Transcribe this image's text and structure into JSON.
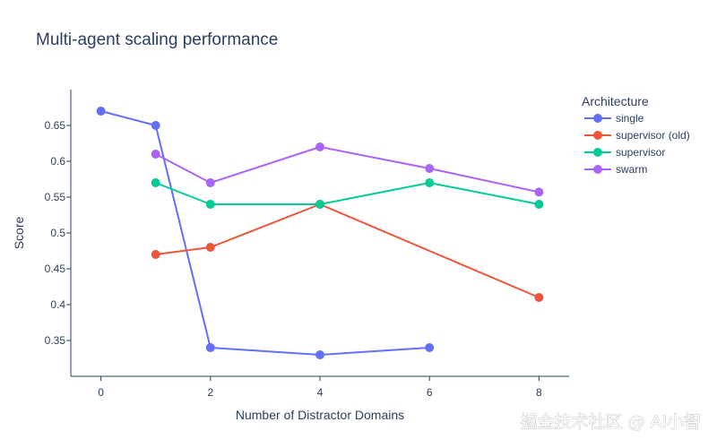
{
  "watermark": "掘金技术社区 @ AI小智",
  "chart_data": {
    "type": "line",
    "title": "Multi-agent scaling performance",
    "xlabel": "Number of Distractor Domains",
    "ylabel": "Score",
    "xlim": [
      -0.55,
      8.55
    ],
    "ylim": [
      0.3,
      0.7
    ],
    "xticks": [
      0,
      2,
      4,
      6,
      8
    ],
    "yticks": [
      0.35,
      0.4,
      0.45,
      0.5,
      0.55,
      0.6,
      0.65
    ],
    "ytick_labels": [
      "0.35",
      "0.4",
      "0.45",
      "0.5",
      "0.55",
      "0.6",
      "0.65"
    ],
    "grid": false,
    "legend": {
      "title": "Architecture",
      "placement": "right"
    },
    "series": [
      {
        "name": "single",
        "color": "#636efa",
        "x": [
          0,
          1,
          2,
          4,
          6
        ],
        "y": [
          0.67,
          0.65,
          0.34,
          0.33,
          0.34
        ]
      },
      {
        "name": "supervisor (old)",
        "color": "#ef553b",
        "x": [
          1,
          2,
          4,
          8
        ],
        "y": [
          0.47,
          0.48,
          0.54,
          0.41
        ]
      },
      {
        "name": "supervisor",
        "color": "#00cc96",
        "x": [
          1,
          2,
          4,
          6,
          8
        ],
        "y": [
          0.57,
          0.54,
          0.54,
          0.57,
          0.54
        ]
      },
      {
        "name": "swarm",
        "color": "#ab63fa",
        "x": [
          1,
          2,
          4,
          6,
          8
        ],
        "y": [
          0.61,
          0.57,
          0.62,
          0.59,
          0.557
        ]
      }
    ]
  }
}
